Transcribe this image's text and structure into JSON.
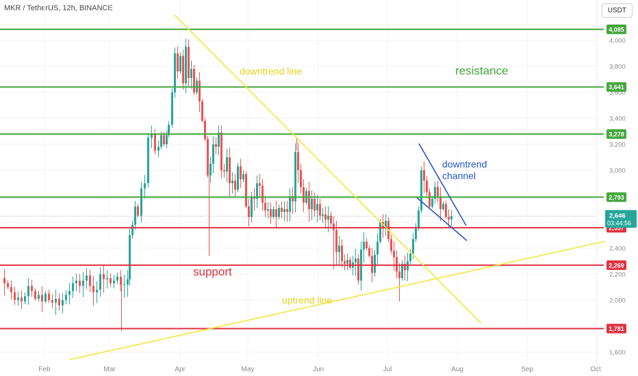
{
  "header": {
    "symbol_info": "MKR / TetherUS, 12h, BINANCE",
    "currency": "USDT"
  },
  "chart_data": {
    "type": "candlestick",
    "title": "MKR / TetherUS, 12h, BINANCE",
    "ylim": [
      1450,
      4160
    ],
    "y_ticks": [
      "1,600",
      "2,000",
      "2,200",
      "2,400",
      "2,600",
      "2,800",
      "3,000",
      "3,200",
      "3,400",
      "3,600",
      "3,800",
      "4,000"
    ],
    "x_ticks": [
      "Feb",
      "Mar",
      "Apr",
      "May",
      "Jun",
      "Jul",
      "Aug",
      "Sep",
      "Oct"
    ],
    "current_price": "2,646",
    "countdown": "03:44:56",
    "resistance_levels": [
      {
        "label": "4,085",
        "value": 4085
      },
      {
        "label": "3,641",
        "value": 3641
      },
      {
        "label": "3,278",
        "value": 3278
      },
      {
        "label": "2,793",
        "value": 2793
      }
    ],
    "support_levels": [
      {
        "label": "2,557",
        "value": 2557
      },
      {
        "label": "2,269",
        "value": 2269
      },
      {
        "label": "1,781",
        "value": 1781
      }
    ],
    "colors": {
      "up": "#26a69a",
      "down": "#ef5350",
      "resistance": "#43a73c",
      "support": "#e0313f",
      "trendline": "#f5e63b",
      "channel": "#2357c6",
      "price_tag": "#26a69a"
    },
    "annotations": [
      {
        "text": "downtrend line",
        "color": "#e5d41e"
      },
      {
        "text": "resistance",
        "color": "#43a73c"
      },
      {
        "text": "support",
        "color": "#e0313f"
      },
      {
        "text": "uptrend line",
        "color": "#e5d41e"
      },
      {
        "text": "downtrend",
        "color": "#2357c6"
      },
      {
        "text": "channel",
        "color": "#2357c6"
      }
    ],
    "price_path": [
      [
        0,
        2170
      ],
      [
        5,
        2130
      ],
      [
        10,
        2100
      ],
      [
        15,
        2060
      ],
      [
        20,
        2000
      ],
      [
        25,
        2020
      ],
      [
        30,
        1990
      ],
      [
        35,
        2030
      ],
      [
        40,
        2110
      ],
      [
        45,
        2070
      ],
      [
        50,
        2010
      ],
      [
        55,
        2040
      ],
      [
        60,
        1990
      ],
      [
        65,
        2050
      ],
      [
        70,
        2000
      ],
      [
        75,
        1980
      ],
      [
        80,
        2010
      ],
      [
        85,
        1960
      ],
      [
        90,
        2000
      ],
      [
        95,
        2040
      ],
      [
        100,
        2070
      ],
      [
        105,
        2130
      ],
      [
        110,
        2150
      ],
      [
        115,
        2110
      ],
      [
        120,
        2150
      ],
      [
        125,
        2190
      ],
      [
        130,
        2110
      ],
      [
        135,
        2060
      ],
      [
        140,
        2080
      ],
      [
        145,
        2200
      ],
      [
        150,
        2160
      ],
      [
        155,
        2170
      ],
      [
        160,
        2130
      ],
      [
        165,
        2150
      ],
      [
        170,
        2180
      ],
      [
        175,
        2120
      ],
      [
        180,
        2120
      ],
      [
        185,
        2160
      ],
      [
        188,
        2500
      ],
      [
        192,
        2580
      ],
      [
        196,
        2720
      ],
      [
        200,
        2650
      ],
      [
        205,
        2860
      ],
      [
        210,
        2900
      ],
      [
        215,
        3250
      ],
      [
        220,
        3280
      ],
      [
        225,
        3150
      ],
      [
        230,
        3180
      ],
      [
        234,
        3270
      ],
      [
        238,
        3200
      ],
      [
        242,
        3270
      ],
      [
        245,
        3350
      ],
      [
        250,
        3600
      ],
      [
        254,
        3900
      ],
      [
        258,
        3760
      ],
      [
        262,
        3880
      ],
      [
        266,
        3670
      ],
      [
        270,
        3950
      ],
      [
        274,
        3710
      ],
      [
        278,
        3780
      ],
      [
        282,
        3600
      ],
      [
        286,
        3690
      ],
      [
        290,
        3530
      ],
      [
        294,
        3380
      ],
      [
        298,
        3240
      ],
      [
        302,
        2960
      ],
      [
        306,
        3050
      ],
      [
        310,
        3200
      ],
      [
        314,
        3180
      ],
      [
        318,
        3290
      ],
      [
        322,
        3000
      ],
      [
        326,
        2990
      ],
      [
        330,
        3100
      ],
      [
        334,
        2900
      ],
      [
        338,
        2920
      ],
      [
        342,
        2850
      ],
      [
        346,
        3030
      ],
      [
        350,
        2930
      ],
      [
        354,
        2970
      ],
      [
        358,
        2720
      ],
      [
        362,
        2640
      ],
      [
        366,
        2790
      ],
      [
        370,
        2780
      ],
      [
        374,
        2900
      ],
      [
        378,
        2880
      ],
      [
        382,
        2750
      ],
      [
        386,
        2690
      ],
      [
        390,
        2700
      ],
      [
        394,
        2640
      ],
      [
        398,
        2700
      ],
      [
        402,
        2640
      ],
      [
        406,
        2710
      ],
      [
        410,
        2680
      ],
      [
        414,
        2700
      ],
      [
        418,
        2680
      ],
      [
        422,
        2800
      ],
      [
        426,
        2760
      ],
      [
        430,
        3140
      ],
      [
        434,
        3000
      ],
      [
        438,
        2870
      ],
      [
        442,
        2750
      ],
      [
        446,
        2840
      ],
      [
        450,
        2700
      ],
      [
        454,
        2780
      ],
      [
        458,
        2690
      ],
      [
        462,
        2740
      ],
      [
        466,
        2650
      ],
      [
        470,
        2660
      ],
      [
        474,
        2620
      ],
      [
        478,
        2650
      ],
      [
        482,
        2590
      ],
      [
        486,
        2540
      ],
      [
        490,
        2370
      ],
      [
        494,
        2420
      ],
      [
        498,
        2300
      ],
      [
        502,
        2280
      ],
      [
        506,
        2310
      ],
      [
        510,
        2250
      ],
      [
        514,
        2290
      ],
      [
        518,
        2320
      ],
      [
        522,
        2150
      ],
      [
        526,
        2390
      ],
      [
        530,
        2450
      ],
      [
        534,
        2400
      ],
      [
        538,
        2340
      ],
      [
        542,
        2210
      ],
      [
        546,
        2350
      ],
      [
        550,
        2450
      ],
      [
        554,
        2600
      ],
      [
        558,
        2550
      ],
      [
        562,
        2610
      ],
      [
        566,
        2470
      ],
      [
        570,
        2380
      ],
      [
        574,
        2330
      ],
      [
        578,
        2220
      ],
      [
        582,
        2170
      ],
      [
        586,
        2280
      ],
      [
        590,
        2230
      ],
      [
        594,
        2300
      ],
      [
        598,
        2360
      ],
      [
        602,
        2470
      ],
      [
        606,
        2560
      ],
      [
        610,
        2690
      ],
      [
        614,
        3000
      ],
      [
        618,
        2920
      ],
      [
        622,
        2830
      ],
      [
        626,
        2720
      ],
      [
        630,
        2780
      ],
      [
        634,
        2870
      ],
      [
        638,
        2800
      ],
      [
        642,
        2700
      ],
      [
        646,
        2740
      ],
      [
        650,
        2640
      ],
      [
        654,
        2620
      ],
      [
        658,
        2646
      ]
    ]
  }
}
